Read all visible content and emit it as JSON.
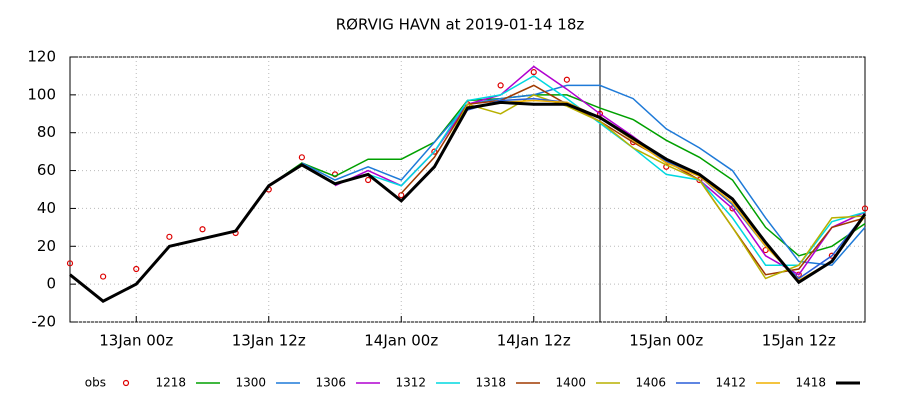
{
  "chart_data": {
    "type": "line",
    "title": "RØRVIG HAVN at 2019-01-14 18z",
    "categories": [
      null,
      null,
      "13Jan 00z",
      null,
      null,
      null,
      "13Jan 12z",
      null,
      null,
      null,
      "14Jan 00z",
      null,
      null,
      null,
      "14Jan 12z",
      null,
      null,
      null,
      "15Jan 00z",
      null,
      null,
      null,
      "15Jan 12z",
      null,
      null
    ],
    "ylim": [
      -20,
      120
    ],
    "yticks": [
      -20,
      0,
      20,
      40,
      60,
      80,
      100,
      120
    ],
    "grid": true,
    "series": [
      {
        "name": "obs",
        "color": "#dd0000",
        "marker": "circle",
        "values": [
          11,
          4,
          8,
          25,
          29,
          27,
          50,
          67,
          58,
          55,
          47,
          70,
          95,
          105,
          112,
          108,
          90,
          75,
          62,
          55,
          40,
          18,
          5,
          15,
          40
        ]
      },
      {
        "name": "1218",
        "color": "#00a000",
        "values": [
          null,
          null,
          null,
          null,
          null,
          null,
          52,
          64,
          57,
          66,
          66,
          75,
          97,
          98,
          100,
          100,
          93,
          87,
          76,
          67,
          55,
          30,
          15,
          20,
          32
        ]
      },
      {
        "name": "1300",
        "color": "#1e7ad8",
        "values": [
          null,
          null,
          null,
          null,
          null,
          null,
          null,
          64,
          55,
          62,
          55,
          75,
          95,
          98,
          100,
          105,
          105,
          98,
          82,
          72,
          60,
          35,
          12,
          10,
          30
        ]
      },
      {
        "name": "1306",
        "color": "#b000d0",
        "values": [
          null,
          null,
          null,
          null,
          null,
          null,
          null,
          null,
          52,
          60,
          52,
          70,
          95,
          100,
          115,
          103,
          90,
          78,
          65,
          55,
          40,
          15,
          5,
          30,
          38
        ]
      },
      {
        "name": "1312",
        "color": "#00d8e0",
        "values": [
          null,
          null,
          null,
          null,
          null,
          null,
          null,
          null,
          null,
          58,
          52,
          70,
          97,
          100,
          110,
          98,
          85,
          72,
          58,
          55,
          35,
          10,
          10,
          33,
          38
        ]
      },
      {
        "name": "1318",
        "color": "#a03a00",
        "values": [
          null,
          null,
          null,
          null,
          null,
          null,
          null,
          null,
          null,
          null,
          48,
          67,
          95,
          97,
          105,
          95,
          86,
          75,
          65,
          55,
          30,
          5,
          8,
          30,
          35
        ]
      },
      {
        "name": "1400",
        "color": "#b8b000",
        "values": [
          null,
          null,
          null,
          null,
          null,
          null,
          null,
          null,
          null,
          null,
          null,
          62,
          95,
          90,
          100,
          94,
          86,
          72,
          63,
          55,
          30,
          3,
          10,
          35,
          36
        ]
      },
      {
        "name": "1406",
        "color": "#2a5ed8",
        "values": [
          null,
          null,
          null,
          null,
          null,
          null,
          null,
          null,
          null,
          null,
          null,
          null,
          92,
          97,
          98,
          96,
          88,
          76,
          65,
          57,
          42,
          20,
          3,
          15,
          37
        ]
      },
      {
        "name": "1412",
        "color": "#f0b000",
        "values": [
          null,
          null,
          null,
          null,
          null,
          null,
          null,
          null,
          null,
          null,
          null,
          null,
          null,
          96,
          97,
          96,
          88,
          76,
          64,
          57,
          43,
          20,
          2,
          12,
          36
        ]
      },
      {
        "name": "1418",
        "color": "#000000",
        "values": [
          5,
          -9,
          0,
          20,
          24,
          28,
          52,
          63,
          53,
          58,
          44,
          62,
          93,
          96,
          95,
          95,
          88,
          77,
          66,
          58,
          45,
          22,
          1,
          12,
          37
        ]
      }
    ]
  }
}
